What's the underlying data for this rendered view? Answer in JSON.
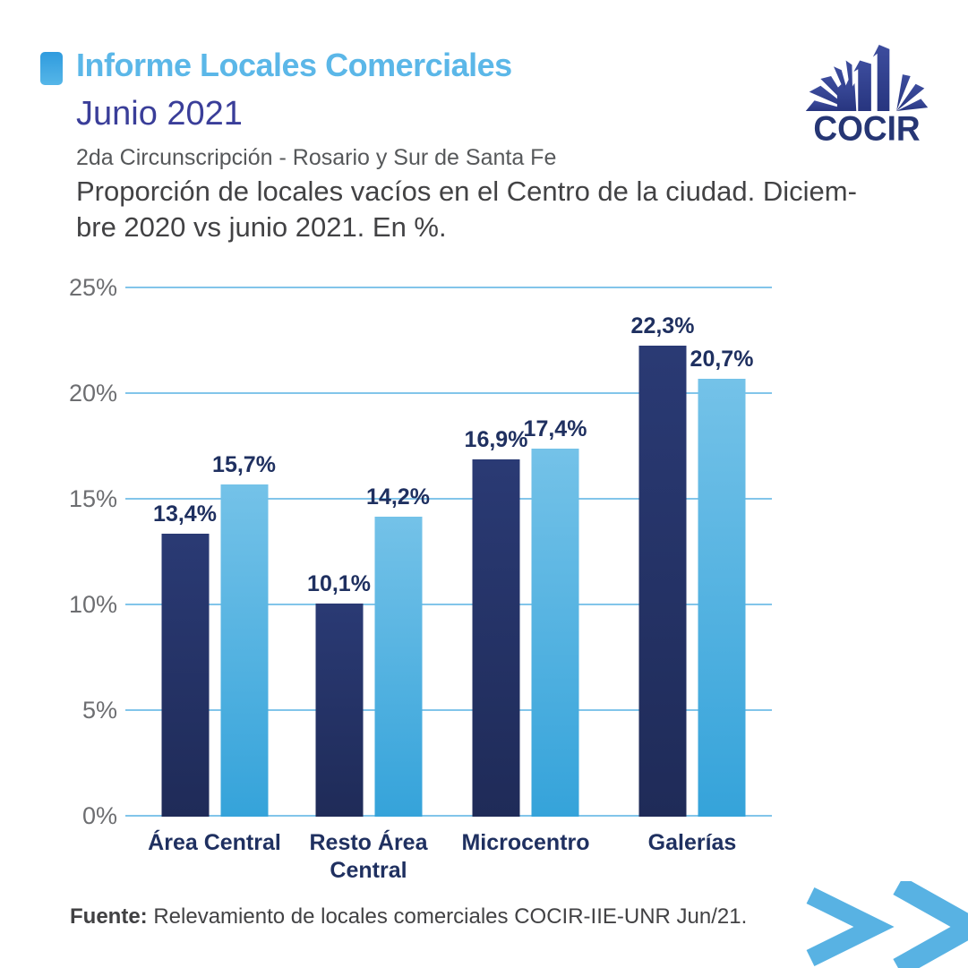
{
  "header": {
    "report_title": "Informe Locales Comerciales",
    "period": "Junio 2021",
    "subtitle": "2da Circunscripción - Rosario y Sur de Santa Fe",
    "title_line1": "Proporción de locales vacíos en el Centro de la ciudad. Diciem-",
    "title_line2": "bre 2020 vs junio 2021. En %."
  },
  "logo": {
    "wordmark": "COCIR"
  },
  "colors": {
    "accent_light_blue": "#5BB7E8",
    "grid_blue": "#82C5EA",
    "navy_labels": "#1F3060",
    "indigo_period": "#3A3E99",
    "bar_dark": "#23305F",
    "bar_light": "#4DAFDF"
  },
  "chart_data": {
    "type": "bar",
    "title": "Proporción de locales vacíos en el Centro de la ciudad. Diciembre 2020 vs junio 2021. En %.",
    "categories": [
      "Área Central",
      "Resto Área\nCentral",
      "Microcentro",
      "Galerías"
    ],
    "series": [
      {
        "name": "Diciembre 2020",
        "style": "dark",
        "values": [
          13.4,
          10.1,
          16.9,
          22.3
        ],
        "labels": [
          "13,4%",
          "10,1%",
          "16,9%",
          "22,3%"
        ]
      },
      {
        "name": "Junio 2021",
        "style": "light",
        "values": [
          15.7,
          14.2,
          17.4,
          20.7
        ],
        "labels": [
          "15,7%",
          "14,2%",
          "17,4%",
          "20,7%"
        ]
      }
    ],
    "yticks": [
      0,
      5,
      10,
      15,
      20,
      25
    ],
    "ytick_labels": [
      "0%",
      "5%",
      "10%",
      "15%",
      "20%",
      "25%"
    ],
    "ylim": [
      0,
      25
    ],
    "grid": true,
    "legend": false
  },
  "footer": {
    "source_label": "Fuente:",
    "source_text": " Relevamiento de locales comerciales COCIR-IIE-UNR Jun/21."
  }
}
